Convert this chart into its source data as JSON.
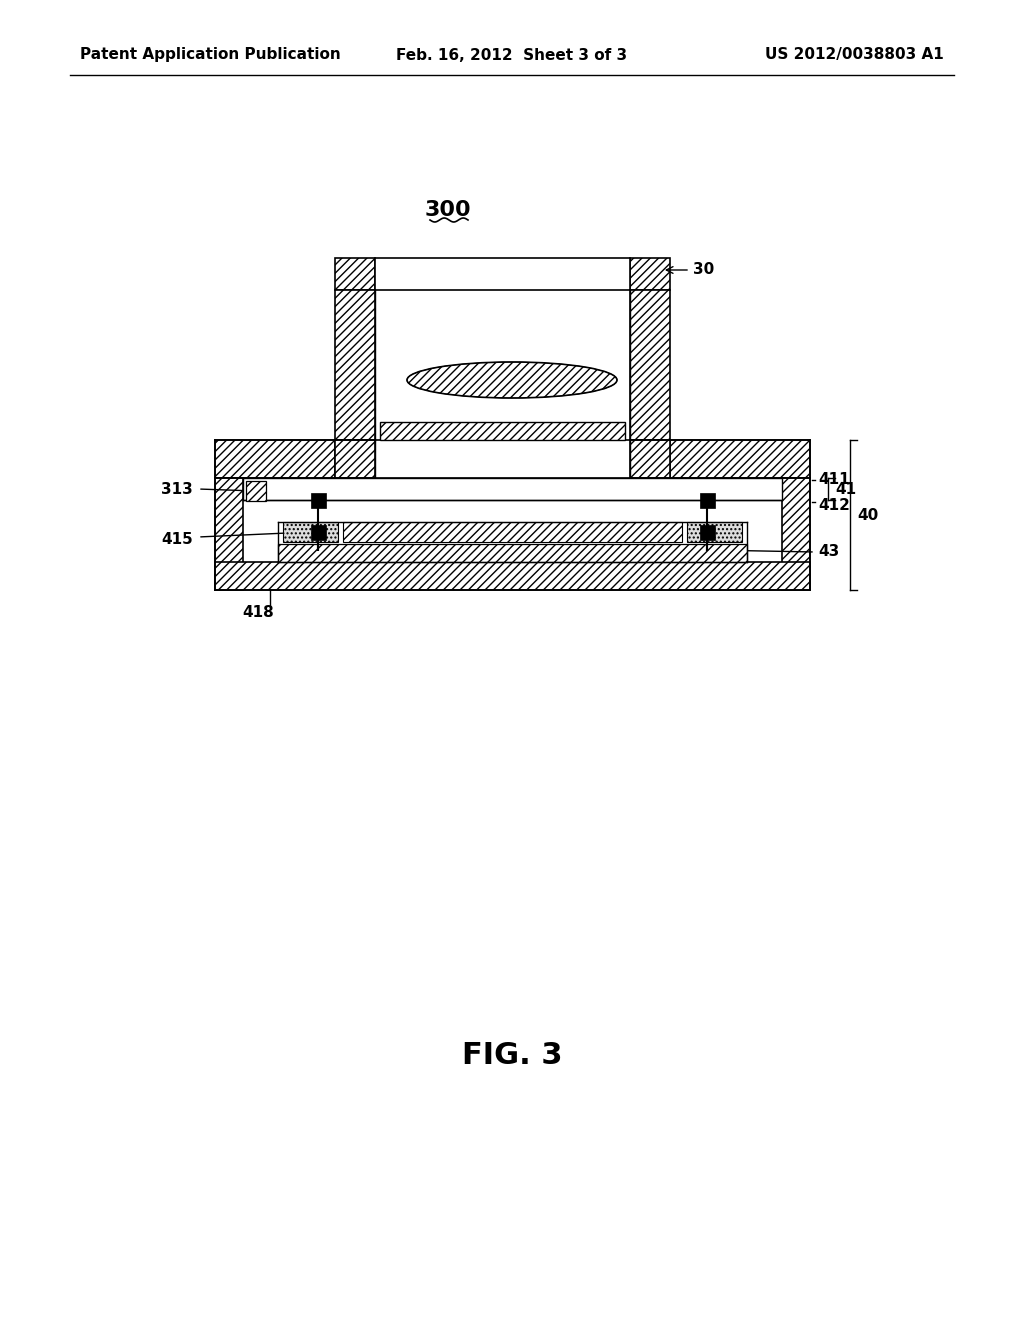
{
  "bg_color": "#ffffff",
  "header_left": "Patent Application Publication",
  "header_mid": "Feb. 16, 2012  Sheet 3 of 3",
  "header_right": "US 2012/0038803 A1",
  "fig_label": "FIG. 3",
  "diagram_label": "300"
}
